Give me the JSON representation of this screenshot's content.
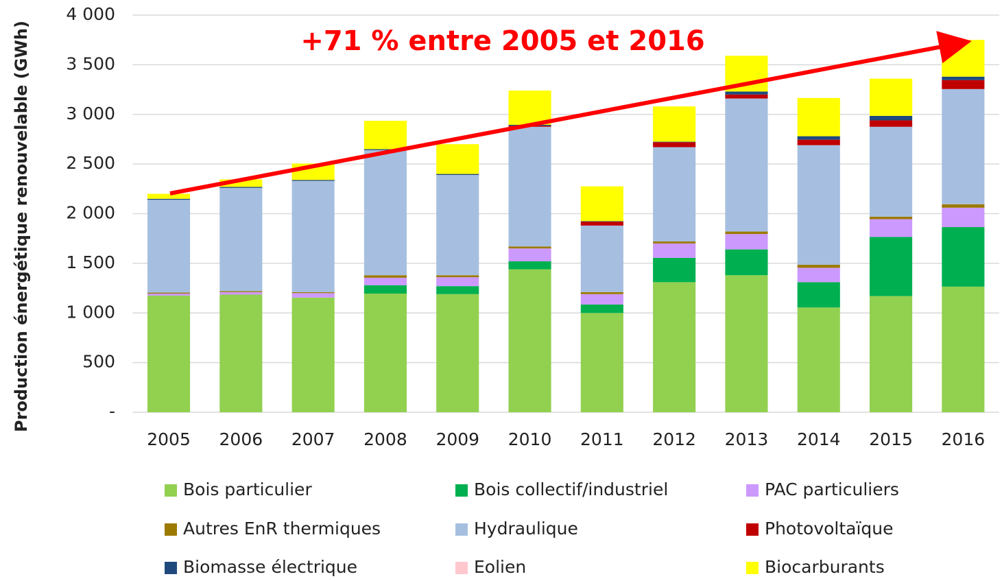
{
  "chart_data": {
    "type": "stacked_bar",
    "y_label": "Production énergétique renouvelable (GWh)",
    "annotation": "+71 % entre 2005 et 2016",
    "categories": [
      "2005",
      "2006",
      "2007",
      "2008",
      "2009",
      "2010",
      "2011",
      "2012",
      "2013",
      "2014",
      "2015",
      "2016"
    ],
    "series": [
      {
        "name": "Bois particulier",
        "color": "#92d050",
        "values": [
          1175,
          1185,
          1155,
          1195,
          1190,
          1440,
          1000,
          1310,
          1380,
          1055,
          1170,
          1265
        ]
      },
      {
        "name": "Bois collectif/industriel",
        "color": "#00b050",
        "values": [
          0,
          0,
          0,
          85,
          80,
          80,
          85,
          245,
          260,
          255,
          595,
          600
        ]
      },
      {
        "name": "PAC particuliers",
        "color": "#cc99ff",
        "values": [
          20,
          25,
          45,
          75,
          90,
          130,
          105,
          145,
          155,
          145,
          180,
          195
        ]
      },
      {
        "name": "Autres EnR thermiques",
        "color": "#9c7a00",
        "values": [
          10,
          10,
          10,
          25,
          20,
          20,
          20,
          20,
          25,
          30,
          25,
          35
        ]
      },
      {
        "name": "Hydraulique",
        "color": "#a6bfe0",
        "values": [
          935,
          1040,
          1120,
          1260,
          1010,
          1205,
          670,
          950,
          1340,
          1205,
          905,
          1160
        ]
      },
      {
        "name": "Photovoltaïque",
        "color": "#c00000",
        "values": [
          0,
          0,
          0,
          0,
          0,
          10,
          40,
          50,
          40,
          55,
          65,
          90
        ]
      },
      {
        "name": "Biomasse électrique",
        "color": "#1f497d",
        "values": [
          10,
          10,
          10,
          10,
          10,
          10,
          5,
          5,
          30,
          35,
          45,
          35
        ]
      },
      {
        "name": "Eolien",
        "color": "#ffc7ce",
        "values": [
          0,
          0,
          0,
          0,
          0,
          0,
          0,
          0,
          0,
          0,
          0,
          0
        ]
      },
      {
        "name": "Biocarburants",
        "color": "#ffff00",
        "values": [
          50,
          75,
          165,
          285,
          300,
          345,
          350,
          355,
          360,
          385,
          375,
          370
        ]
      }
    ],
    "ylim": [
      0,
      4000
    ],
    "yticks": [
      {
        "value": 0,
        "label": "-"
      },
      500,
      {
        "value": 1000,
        "label": "1 000"
      },
      {
        "value": 1500,
        "label": "1 500"
      },
      {
        "value": 2000,
        "label": "2 000"
      },
      {
        "value": 2500,
        "label": "2 500"
      },
      {
        "value": 3000,
        "label": "3 000"
      },
      {
        "value": 3500,
        "label": "3 500"
      },
      {
        "value": 4000,
        "label": "4 000"
      }
    ],
    "grid": true
  }
}
